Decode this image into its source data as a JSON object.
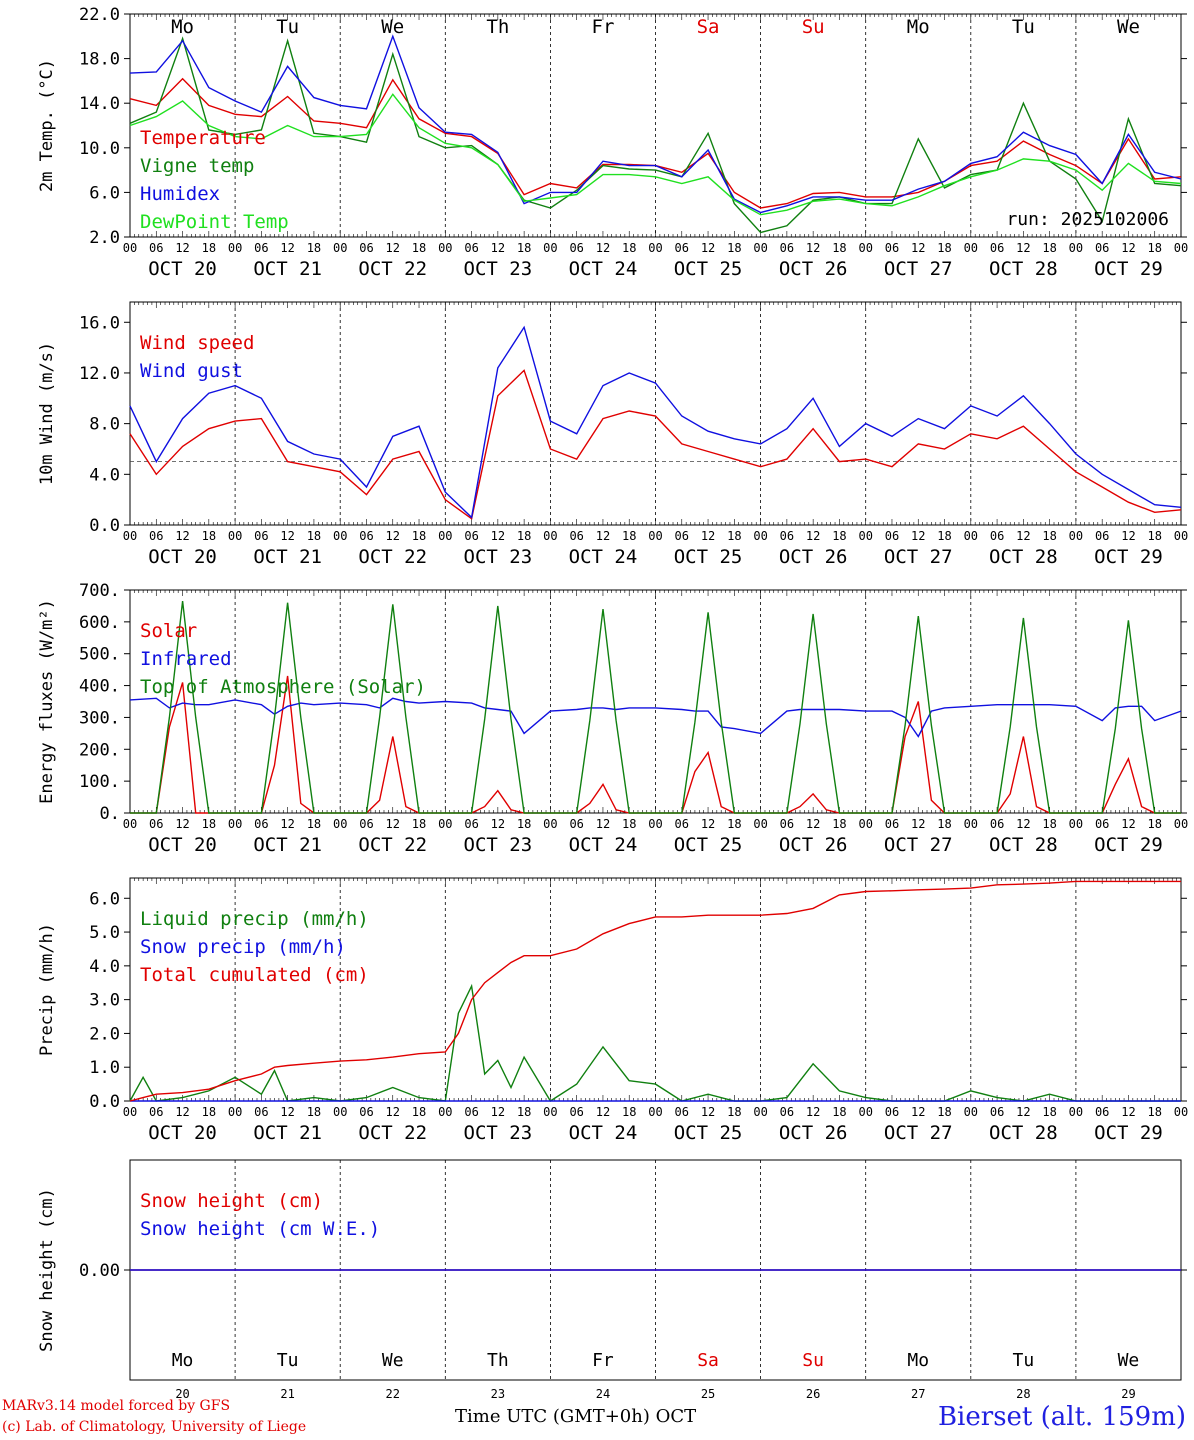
{
  "time": {
    "start_day": "OCT 20",
    "days": [
      "OCT 20",
      "OCT 21",
      "OCT 22",
      "OCT 23",
      "OCT 24",
      "OCT 25",
      "OCT 26",
      "OCT 27",
      "OCT 28",
      "OCT 29"
    ],
    "weekdays": [
      "Mo",
      "Tu",
      "We",
      "Th",
      "Fr",
      "Sa",
      "Su",
      "Mo",
      "Tu",
      "We"
    ],
    "weekend_flags": [
      false,
      false,
      false,
      false,
      false,
      true,
      true,
      false,
      false,
      false
    ],
    "hour_ticks": [
      "00",
      "06",
      "12",
      "18"
    ],
    "day_numbers": [
      "20",
      "21",
      "22",
      "23",
      "24",
      "25",
      "26",
      "27",
      "28",
      "29"
    ],
    "colors": {
      "weekday": "#000000",
      "weekend": "#e00000"
    }
  },
  "panels": [
    {
      "id": "temp",
      "ylabel": "2m Temp. (°C)",
      "ylim": [
        2.0,
        22.0
      ],
      "yticks": [
        "2.0",
        "6.0",
        "10.0",
        "14.0",
        "18.0",
        "22.0"
      ],
      "show_weekdays": true,
      "legend": [
        {
          "label": "Temperature",
          "color": "#e00000"
        },
        {
          "label": "Vigne temp",
          "color": "#108010"
        },
        {
          "label": "Humidex",
          "color": "#1010e0"
        },
        {
          "label": "DewPoint Temp",
          "color": "#20e020"
        }
      ],
      "run_label": "run: 2025102006"
    },
    {
      "id": "wind",
      "ylabel": "10m Wind (m/s)",
      "ylim": [
        0.0,
        17.6
      ],
      "yticks": [
        "0.0",
        "4.0",
        "8.0",
        "12.0",
        "16.0"
      ],
      "reference_line": 5.0,
      "legend": [
        {
          "label": "Wind speed",
          "color": "#e00000"
        },
        {
          "label": "Wind gust",
          "color": "#1010e0"
        }
      ]
    },
    {
      "id": "energy",
      "ylabel": "Energy fluxes (W/m²)",
      "ylim": [
        0,
        700
      ],
      "yticks": [
        "0.",
        "100.",
        "200.",
        "300.",
        "400.",
        "500.",
        "600.",
        "700."
      ],
      "legend": [
        {
          "label": "Solar",
          "color": "#e00000"
        },
        {
          "label": "Infrared",
          "color": "#1010e0"
        },
        {
          "label": "Top of Atmosphere (Solar)",
          "color": "#108010"
        }
      ]
    },
    {
      "id": "precip",
      "ylabel": "Precip (mm/h)",
      "ylim": [
        0.0,
        6.6
      ],
      "yticks": [
        "0.0",
        "1.0",
        "2.0",
        "3.0",
        "4.0",
        "5.0",
        "6.0"
      ],
      "legend": [
        {
          "label": "Liquid precip (mm/h)",
          "color": "#108010"
        },
        {
          "label": "Snow precip (mm/h)",
          "color": "#1010e0"
        },
        {
          "label": "Total cumulated (cm)",
          "color": "#e00000"
        }
      ]
    },
    {
      "id": "snow",
      "ylabel": "Snow height (cm)",
      "ylim": [
        -1,
        1
      ],
      "yticks": [
        "0.00"
      ],
      "legend": [
        {
          "label": "Snow height (cm)",
          "color": "#e00000"
        },
        {
          "label": "Snow height (cm W.E.)",
          "color": "#1010e0"
        }
      ]
    }
  ],
  "footer": {
    "model": "MARv3.14 model forced by GFS",
    "copyright": "(c) Lab. of Climatology, University of Liege",
    "axis_label": "Time UTC (GMT+0h) OCT",
    "station": "Bierset (alt. 159m)"
  },
  "chart_data": [
    {
      "type": "line",
      "title": "",
      "ylabel": "2m Temp. (°C)",
      "ylim": [
        2.0,
        22.0
      ],
      "x_hours": [
        0,
        6,
        12,
        18,
        24,
        30,
        36,
        42,
        48,
        54,
        60,
        66,
        72,
        78,
        84,
        90,
        96,
        102,
        108,
        114,
        120,
        126,
        132,
        138,
        144,
        150,
        156,
        162,
        168,
        174,
        180,
        186,
        192,
        198,
        204,
        210,
        216,
        222,
        228,
        234,
        240
      ],
      "series": [
        {
          "name": "Temperature",
          "values": [
            14.4,
            13.8,
            16.2,
            13.8,
            13.0,
            12.8,
            14.6,
            12.4,
            12.2,
            11.8,
            16.1,
            12.6,
            11.3,
            11.0,
            9.5,
            5.8,
            6.8,
            6.4,
            8.5,
            8.5,
            8.4,
            7.8,
            9.5,
            6.0,
            4.6,
            5.0,
            5.9,
            6.0,
            5.6,
            5.6,
            6.0,
            7.0,
            8.4,
            8.8,
            10.6,
            9.4,
            8.4,
            6.8,
            10.8,
            7.2,
            7.4
          ]
        },
        {
          "name": "Vigne temp",
          "values": [
            12.2,
            13.2,
            19.8,
            11.6,
            11.2,
            11.6,
            19.6,
            11.3,
            11.0,
            10.5,
            18.4,
            11.0,
            10.0,
            10.2,
            8.5,
            5.3,
            4.6,
            6.2,
            8.4,
            8.1,
            8.0,
            7.4,
            11.3,
            5.0,
            2.4,
            3.0,
            5.3,
            5.6,
            5.0,
            5.0,
            10.8,
            6.4,
            7.6,
            8.0,
            14.0,
            8.8,
            7.2,
            3.4,
            12.6,
            6.8,
            6.6
          ]
        },
        {
          "name": "Humidex",
          "values": [
            16.7,
            16.8,
            19.6,
            15.4,
            14.2,
            13.2,
            17.3,
            14.5,
            13.8,
            13.5,
            20.0,
            13.6,
            11.4,
            11.2,
            9.6,
            5.0,
            6.0,
            6.0,
            8.8,
            8.4,
            8.4,
            7.4,
            9.8,
            5.4,
            4.2,
            4.8,
            5.6,
            5.6,
            5.3,
            5.3,
            6.3,
            7.0,
            8.6,
            9.2,
            11.4,
            10.2,
            9.4,
            6.8,
            11.2,
            7.8,
            7.2
          ]
        },
        {
          "name": "DewPoint Temp",
          "values": [
            12.0,
            12.8,
            14.2,
            12.0,
            11.0,
            10.8,
            12.0,
            11.0,
            11.0,
            11.2,
            14.8,
            11.8,
            10.4,
            10.0,
            8.5,
            5.2,
            5.5,
            5.8,
            7.6,
            7.6,
            7.4,
            6.8,
            7.4,
            5.3,
            4.0,
            4.4,
            5.2,
            5.4,
            5.0,
            4.8,
            5.6,
            6.6,
            7.4,
            8.0,
            9.0,
            8.8,
            8.0,
            6.2,
            8.6,
            7.0,
            6.8
          ]
        }
      ]
    },
    {
      "type": "line",
      "title": "",
      "ylabel": "10m Wind (m/s)",
      "ylim": [
        0.0,
        17.6
      ],
      "x_hours": [
        0,
        6,
        12,
        18,
        24,
        30,
        36,
        42,
        48,
        54,
        60,
        66,
        72,
        78,
        84,
        90,
        96,
        102,
        108,
        114,
        120,
        126,
        132,
        138,
        144,
        150,
        156,
        162,
        168,
        174,
        180,
        186,
        192,
        198,
        204,
        210,
        216,
        222,
        228,
        234,
        240
      ],
      "series": [
        {
          "name": "Wind speed",
          "values": [
            7.2,
            4.0,
            6.2,
            7.6,
            8.2,
            8.4,
            5.0,
            4.6,
            4.2,
            2.4,
            5.2,
            5.8,
            2.0,
            0.5,
            10.2,
            12.2,
            6.0,
            5.2,
            8.4,
            9.0,
            8.6,
            6.4,
            5.8,
            5.2,
            4.6,
            5.2,
            7.6,
            5.0,
            5.2,
            4.6,
            6.4,
            6.0,
            7.2,
            6.8,
            7.8,
            6.0,
            4.2,
            3.0,
            1.8,
            1.0,
            1.2
          ]
        },
        {
          "name": "Wind gust",
          "values": [
            9.4,
            5.0,
            8.4,
            10.4,
            11.0,
            10.0,
            6.6,
            5.6,
            5.2,
            3.0,
            7.0,
            7.8,
            2.6,
            0.6,
            12.4,
            15.6,
            8.2,
            7.2,
            11.0,
            12.0,
            11.2,
            8.6,
            7.4,
            6.8,
            6.4,
            7.6,
            10.0,
            6.2,
            8.0,
            7.0,
            8.4,
            7.6,
            9.4,
            8.6,
            10.2,
            8.0,
            5.6,
            4.0,
            2.8,
            1.6,
            1.4
          ]
        }
      ]
    },
    {
      "type": "line",
      "title": "",
      "ylabel": "Energy fluxes (W/m²)",
      "ylim": [
        0,
        700
      ],
      "x_hours": [
        0,
        6,
        9,
        12,
        15,
        18,
        24,
        30,
        33,
        36,
        39,
        42,
        48,
        54,
        57,
        60,
        63,
        66,
        72,
        78,
        81,
        84,
        87,
        90,
        96,
        102,
        105,
        108,
        111,
        114,
        120,
        126,
        129,
        132,
        135,
        138,
        144,
        150,
        153,
        156,
        159,
        162,
        168,
        174,
        177,
        180,
        183,
        186,
        192,
        198,
        201,
        204,
        207,
        210,
        216,
        222,
        225,
        228,
        231,
        234,
        240
      ],
      "series": [
        {
          "name": "Solar",
          "values": [
            0,
            0,
            270,
            410,
            0,
            0,
            0,
            0,
            150,
            430,
            30,
            0,
            0,
            0,
            40,
            240,
            20,
            0,
            0,
            0,
            20,
            70,
            10,
            0,
            0,
            0,
            30,
            90,
            10,
            0,
            0,
            0,
            130,
            190,
            20,
            0,
            0,
            0,
            20,
            60,
            10,
            0,
            0,
            0,
            240,
            350,
            40,
            0,
            0,
            0,
            60,
            240,
            20,
            0,
            0,
            0,
            90,
            170,
            20,
            0,
            0
          ]
        },
        {
          "name": "Infrared",
          "values": [
            355,
            360,
            330,
            345,
            340,
            340,
            355,
            340,
            310,
            335,
            345,
            340,
            345,
            340,
            330,
            360,
            350,
            345,
            350,
            345,
            330,
            325,
            320,
            250,
            320,
            325,
            330,
            330,
            325,
            330,
            330,
            325,
            320,
            320,
            270,
            265,
            250,
            320,
            325,
            325,
            325,
            325,
            320,
            320,
            300,
            240,
            320,
            330,
            335,
            340,
            340,
            340,
            340,
            340,
            335,
            290,
            330,
            335,
            335,
            290,
            320
          ]
        },
        {
          "name": "Top of Atmosphere (Solar)",
          "values": [
            0,
            0,
            300,
            665,
            300,
            0,
            0,
            0,
            300,
            660,
            300,
            0,
            0,
            0,
            300,
            655,
            300,
            0,
            0,
            0,
            295,
            650,
            295,
            0,
            0,
            0,
            290,
            640,
            290,
            0,
            0,
            0,
            285,
            630,
            285,
            0,
            0,
            0,
            280,
            625,
            280,
            0,
            0,
            0,
            275,
            618,
            275,
            0,
            0,
            0,
            270,
            612,
            270,
            0,
            0,
            0,
            265,
            605,
            265,
            0,
            0
          ]
        }
      ]
    },
    {
      "type": "line",
      "title": "",
      "ylabel": "Precip (mm/h)",
      "ylim": [
        0.0,
        6.6
      ],
      "x_hours": [
        0,
        3,
        6,
        12,
        18,
        24,
        30,
        33,
        36,
        42,
        48,
        54,
        60,
        66,
        72,
        75,
        78,
        81,
        84,
        87,
        90,
        96,
        102,
        108,
        114,
        120,
        126,
        132,
        138,
        144,
        150,
        156,
        162,
        168,
        174,
        180,
        186,
        192,
        198,
        204,
        210,
        216,
        222,
        228,
        234,
        240
      ],
      "series": [
        {
          "name": "Liquid precip (mm/h)",
          "values": [
            0,
            0.7,
            0,
            0.1,
            0.3,
            0.7,
            0.2,
            0.9,
            0,
            0.1,
            0,
            0.1,
            0.4,
            0.1,
            0,
            2.6,
            3.4,
            0.8,
            1.2,
            0.4,
            1.3,
            0,
            0.5,
            1.6,
            0.6,
            0.5,
            0,
            0.2,
            0,
            0,
            0.1,
            1.1,
            0.3,
            0.1,
            0,
            0,
            0,
            0.3,
            0.1,
            0,
            0.2,
            0,
            0,
            0,
            0,
            0
          ]
        },
        {
          "name": "Snow precip (mm/h)",
          "values": [
            0,
            0,
            0,
            0,
            0,
            0,
            0,
            0,
            0,
            0,
            0,
            0,
            0,
            0,
            0,
            0,
            0,
            0,
            0,
            0,
            0,
            0,
            0,
            0,
            0,
            0,
            0,
            0,
            0,
            0,
            0,
            0,
            0,
            0,
            0,
            0,
            0,
            0,
            0,
            0,
            0,
            0,
            0,
            0,
            0,
            0
          ]
        },
        {
          "name": "Total cumulated (cm)",
          "values": [
            0,
            0.1,
            0.2,
            0.25,
            0.35,
            0.6,
            0.8,
            1.0,
            1.05,
            1.12,
            1.18,
            1.22,
            1.3,
            1.4,
            1.45,
            2.0,
            3.0,
            3.5,
            3.8,
            4.1,
            4.3,
            4.3,
            4.5,
            4.95,
            5.25,
            5.45,
            5.45,
            5.5,
            5.5,
            5.5,
            5.55,
            5.7,
            6.1,
            6.2,
            6.22,
            6.25,
            6.27,
            6.3,
            6.4,
            6.42,
            6.45,
            6.5,
            6.5,
            6.5,
            6.5,
            6.5
          ]
        }
      ]
    },
    {
      "type": "line",
      "title": "",
      "ylabel": "Snow height (cm)",
      "ylim": [
        -1,
        1
      ],
      "x_hours": [
        0,
        240
      ],
      "series": [
        {
          "name": "Snow height (cm)",
          "values": [
            0,
            0
          ]
        },
        {
          "name": "Snow height (cm W.E.)",
          "values": [
            0,
            0
          ]
        }
      ]
    }
  ]
}
